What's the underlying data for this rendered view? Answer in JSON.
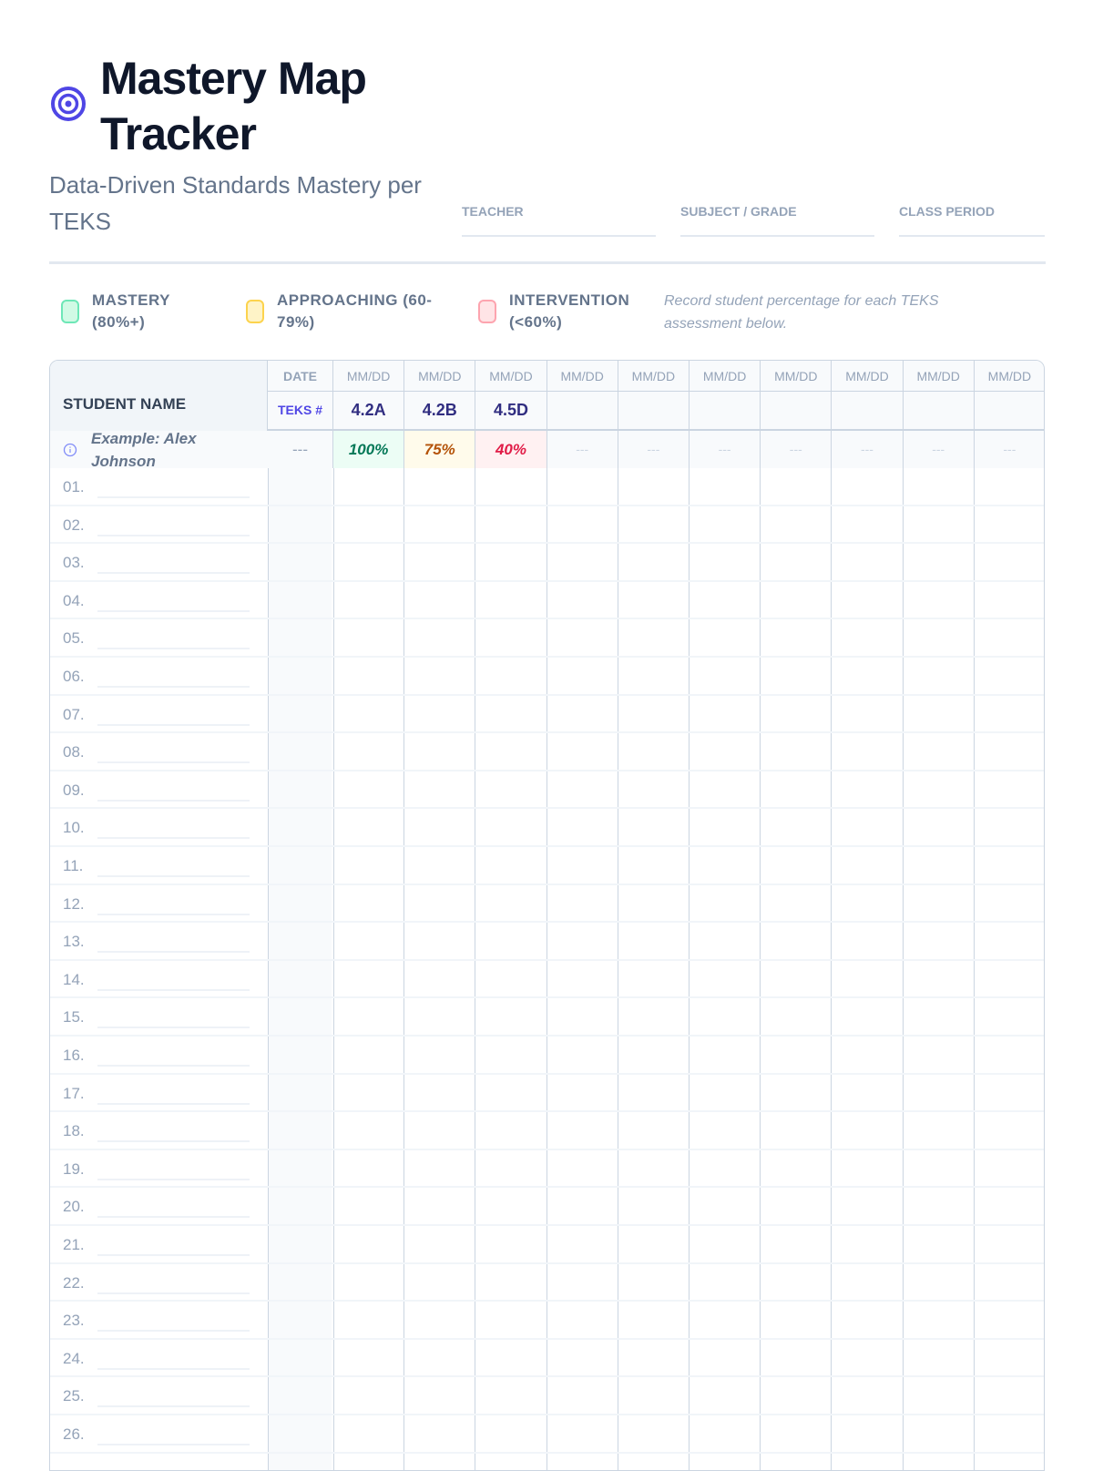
{
  "header": {
    "title": "Mastery Map Tracker",
    "subtitle": "Data-Driven Standards Mastery per TEKS",
    "icon": "target-icon",
    "accent": "#4f46e5"
  },
  "meta": [
    {
      "label": "TEACHER",
      "value": ""
    },
    {
      "label": "SUBJECT / GRADE",
      "value": ""
    },
    {
      "label": "CLASS PERIOD",
      "value": ""
    }
  ],
  "legend": {
    "items": [
      {
        "label": "MASTERY (80%+)",
        "color": "#34d399",
        "fill": "#d1fae5"
      },
      {
        "label": "APPROACHING (60-79%)",
        "color": "#fbbf24",
        "fill": "#fef3c7"
      },
      {
        "label": "INTERVENTION (<60%)",
        "color": "#fb7185",
        "fill": "#ffe4e6"
      }
    ],
    "note": "Record student percentage for each TEKS assessment below."
  },
  "table": {
    "name_header": "STUDENT NAME",
    "date_label": "DATE",
    "teks_label": "TEKS #",
    "dates": [
      "MM/DD",
      "MM/DD",
      "MM/DD",
      "MM/DD",
      "MM/DD",
      "MM/DD",
      "MM/DD",
      "MM/DD",
      "MM/DD",
      "MM/DD"
    ],
    "teks": [
      "4.2A",
      "4.2B",
      "4.5D",
      "",
      "",
      "",
      "",
      "",
      "",
      ""
    ],
    "example": {
      "name": "Example: Alex Johnson",
      "date": "---",
      "scores": [
        "100%",
        "75%",
        "40%",
        "---",
        "---",
        "---",
        "---",
        "---",
        "---",
        "---"
      ]
    },
    "rows": [
      "01.",
      "02.",
      "03.",
      "04.",
      "05.",
      "06.",
      "07.",
      "08.",
      "09.",
      "10.",
      "11.",
      "12.",
      "13.",
      "14.",
      "15.",
      "16.",
      "17.",
      "18.",
      "19.",
      "20.",
      "21.",
      "22.",
      "23.",
      "24.",
      "25.",
      "26."
    ]
  }
}
